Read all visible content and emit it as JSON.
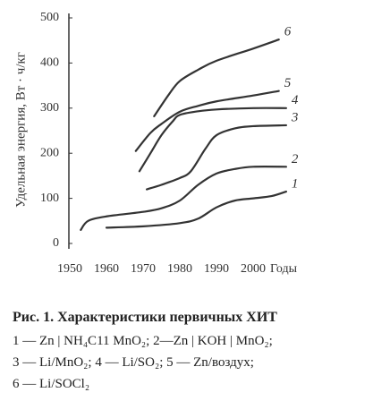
{
  "chart_data": {
    "type": "line",
    "y_label": "Удельная энергия, Вт · ч/кг",
    "x_label": "Годы",
    "xlim": [
      1950,
      2010
    ],
    "xticks": [
      1950,
      1960,
      1970,
      1980,
      1990,
      2000
    ],
    "ylim": [
      0,
      500
    ],
    "yticks": [
      0,
      100,
      200,
      300,
      400,
      500
    ],
    "series": [
      {
        "name": "1",
        "color": "#333333",
        "x": [
          1960,
          1970,
          1980,
          1985,
          1990,
          1995,
          2000,
          2005,
          2009
        ],
        "values": [
          35,
          38,
          45,
          55,
          80,
          95,
          100,
          105,
          115
        ]
      },
      {
        "name": "2",
        "color": "#333333",
        "x": [
          1953,
          1955,
          1960,
          1970,
          1975,
          1980,
          1985,
          1990,
          1995,
          2000,
          2009
        ],
        "values": [
          30,
          50,
          60,
          70,
          78,
          95,
          130,
          155,
          165,
          170,
          170
        ]
      },
      {
        "name": "3",
        "color": "#333333",
        "x": [
          1971,
          1975,
          1980,
          1983,
          1987,
          1990,
          1995,
          2000,
          2009
        ],
        "values": [
          120,
          130,
          145,
          160,
          210,
          240,
          255,
          260,
          262
        ]
      },
      {
        "name": "4",
        "color": "#333333",
        "x": [
          1969,
          1972,
          1975,
          1978,
          1980,
          1985,
          1990,
          2000,
          2009
        ],
        "values": [
          160,
          200,
          240,
          270,
          285,
          293,
          297,
          300,
          300
        ]
      },
      {
        "name": "5",
        "color": "#333333",
        "x": [
          1968,
          1972,
          1975,
          1980,
          1985,
          1990,
          2000,
          2007
        ],
        "values": [
          205,
          245,
          265,
          292,
          305,
          315,
          328,
          338
        ]
      },
      {
        "name": "6",
        "color": "#333333",
        "x": [
          1973,
          1977,
          1980,
          1985,
          1990,
          2000,
          2007
        ],
        "values": [
          282,
          330,
          360,
          385,
          405,
          432,
          452
        ]
      }
    ]
  },
  "caption": {
    "title": "Рис. 1. Характеристики первичных ХИТ",
    "lines": [
      "1 — Zn | NH₄C11 MnO₂; 2—Zn | KOH | MnO₂;",
      "3 — Li/MnO₂; 4 — Li/SO₂; 5 — Zn/воздух;",
      "6 — Li/SOCl₂"
    ]
  }
}
